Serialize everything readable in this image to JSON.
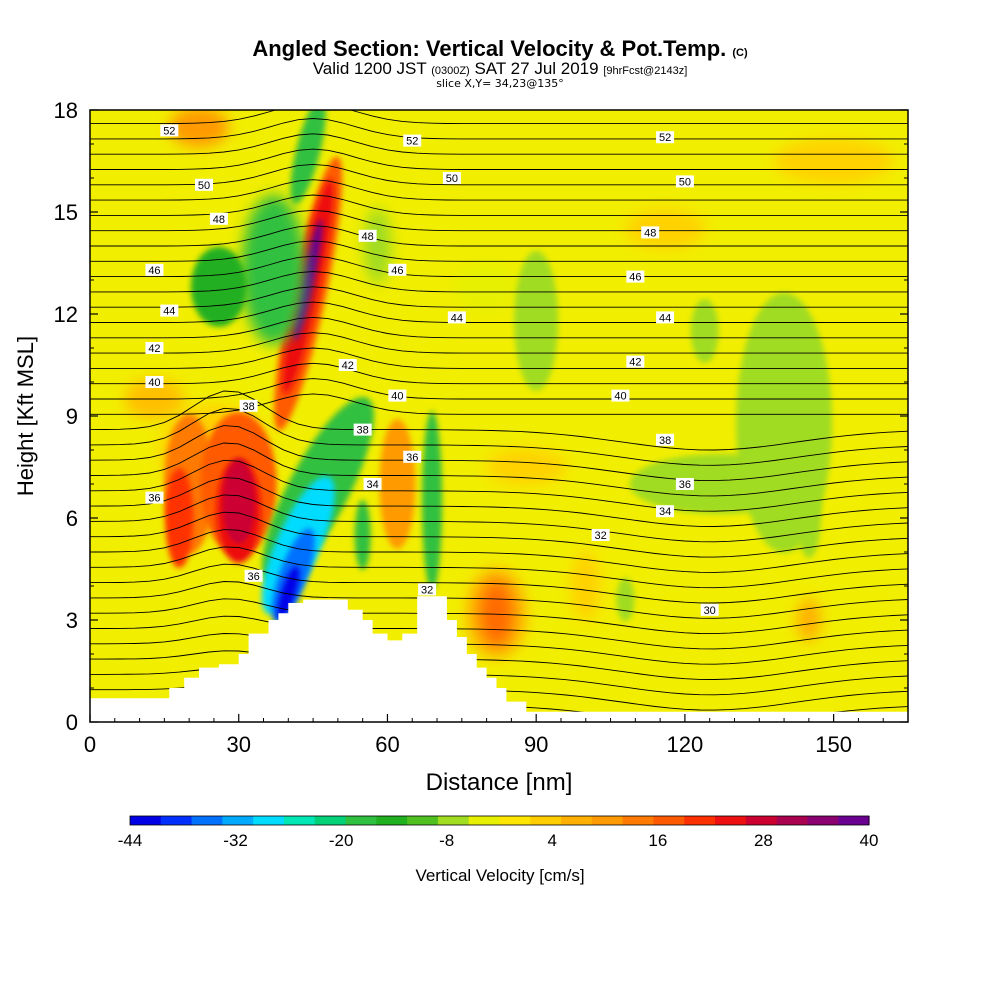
{
  "title": {
    "main": "Angled Section: Vertical Velocity & Pot.Temp.",
    "main_mark": "(C)",
    "valid_prefix": "Valid 1200 JST",
    "valid_zulu": "(0300Z)",
    "valid_date": "SAT 27 Jul 2019",
    "valid_fcst": "[9hrFcst@2143z]",
    "slice": "slice X,Y= 34,23@135°"
  },
  "chart_data": {
    "type": "heatmap",
    "xlabel": "Distance [nm]",
    "ylabel": "Height [Kft MSL]",
    "xlim": [
      0,
      165
    ],
    "ylim": [
      0,
      18
    ],
    "xticks": [
      0,
      30,
      60,
      90,
      120,
      150
    ],
    "yticks": [
      0,
      3,
      6,
      9,
      12,
      15,
      18
    ],
    "colorbar": {
      "label": "Vertical Velocity [cm/s]",
      "ticks": [
        -44,
        -32,
        -20,
        -8,
        4,
        16,
        28,
        40
      ],
      "colors": [
        "#0000e6",
        "#0030ff",
        "#0070ff",
        "#00aaff",
        "#00dcff",
        "#00e6b4",
        "#00d078",
        "#30c040",
        "#20b020",
        "#50c020",
        "#a0dc20",
        "#e6f000",
        "#ffe600",
        "#ffcc00",
        "#ffb000",
        "#ff9a00",
        "#ff7a00",
        "#ff5a00",
        "#ff3000",
        "#ee1010",
        "#cc0030",
        "#aa0050",
        "#8a0070",
        "#6a0090"
      ]
    },
    "isentropes_label_values": [
      30,
      32,
      34,
      36,
      38,
      40,
      42,
      44,
      46,
      48,
      50,
      52
    ],
    "contour_labels": [
      {
        "v": "52",
        "x": 16,
        "y": 17.4
      },
      {
        "v": "52",
        "x": 65,
        "y": 17.1
      },
      {
        "v": "52",
        "x": 116,
        "y": 17.2
      },
      {
        "v": "50",
        "x": 23,
        "y": 15.8
      },
      {
        "v": "50",
        "x": 73,
        "y": 16.0
      },
      {
        "v": "50",
        "x": 120,
        "y": 15.9
      },
      {
        "v": "48",
        "x": 26,
        "y": 14.8
      },
      {
        "v": "48",
        "x": 56,
        "y": 14.3
      },
      {
        "v": "48",
        "x": 113,
        "y": 14.4
      },
      {
        "v": "46",
        "x": 13,
        "y": 13.3
      },
      {
        "v": "46",
        "x": 62,
        "y": 13.3
      },
      {
        "v": "46",
        "x": 110,
        "y": 13.1
      },
      {
        "v": "44",
        "x": 16,
        "y": 12.1
      },
      {
        "v": "44",
        "x": 74,
        "y": 11.9
      },
      {
        "v": "44",
        "x": 116,
        "y": 11.9
      },
      {
        "v": "42",
        "x": 13,
        "y": 11.0
      },
      {
        "v": "42",
        "x": 52,
        "y": 10.5
      },
      {
        "v": "42",
        "x": 110,
        "y": 10.6
      },
      {
        "v": "40",
        "x": 13,
        "y": 10.0
      },
      {
        "v": "40",
        "x": 62,
        "y": 9.6
      },
      {
        "v": "40",
        "x": 107,
        "y": 9.6
      },
      {
        "v": "38",
        "x": 32,
        "y": 9.3
      },
      {
        "v": "38",
        "x": 55,
        "y": 8.6
      },
      {
        "v": "38",
        "x": 116,
        "y": 8.3
      },
      {
        "v": "36",
        "x": 13,
        "y": 6.6
      },
      {
        "v": "36",
        "x": 65,
        "y": 7.8
      },
      {
        "v": "36",
        "x": 120,
        "y": 7.0
      },
      {
        "v": "36",
        "x": 33,
        "y": 4.3
      },
      {
        "v": "34",
        "x": 57,
        "y": 7.0
      },
      {
        "v": "34",
        "x": 116,
        "y": 6.2
      },
      {
        "v": "32",
        "x": 68,
        "y": 3.9
      },
      {
        "v": "32",
        "x": 103,
        "y": 5.5
      },
      {
        "v": "30",
        "x": 125,
        "y": 3.3
      }
    ]
  }
}
